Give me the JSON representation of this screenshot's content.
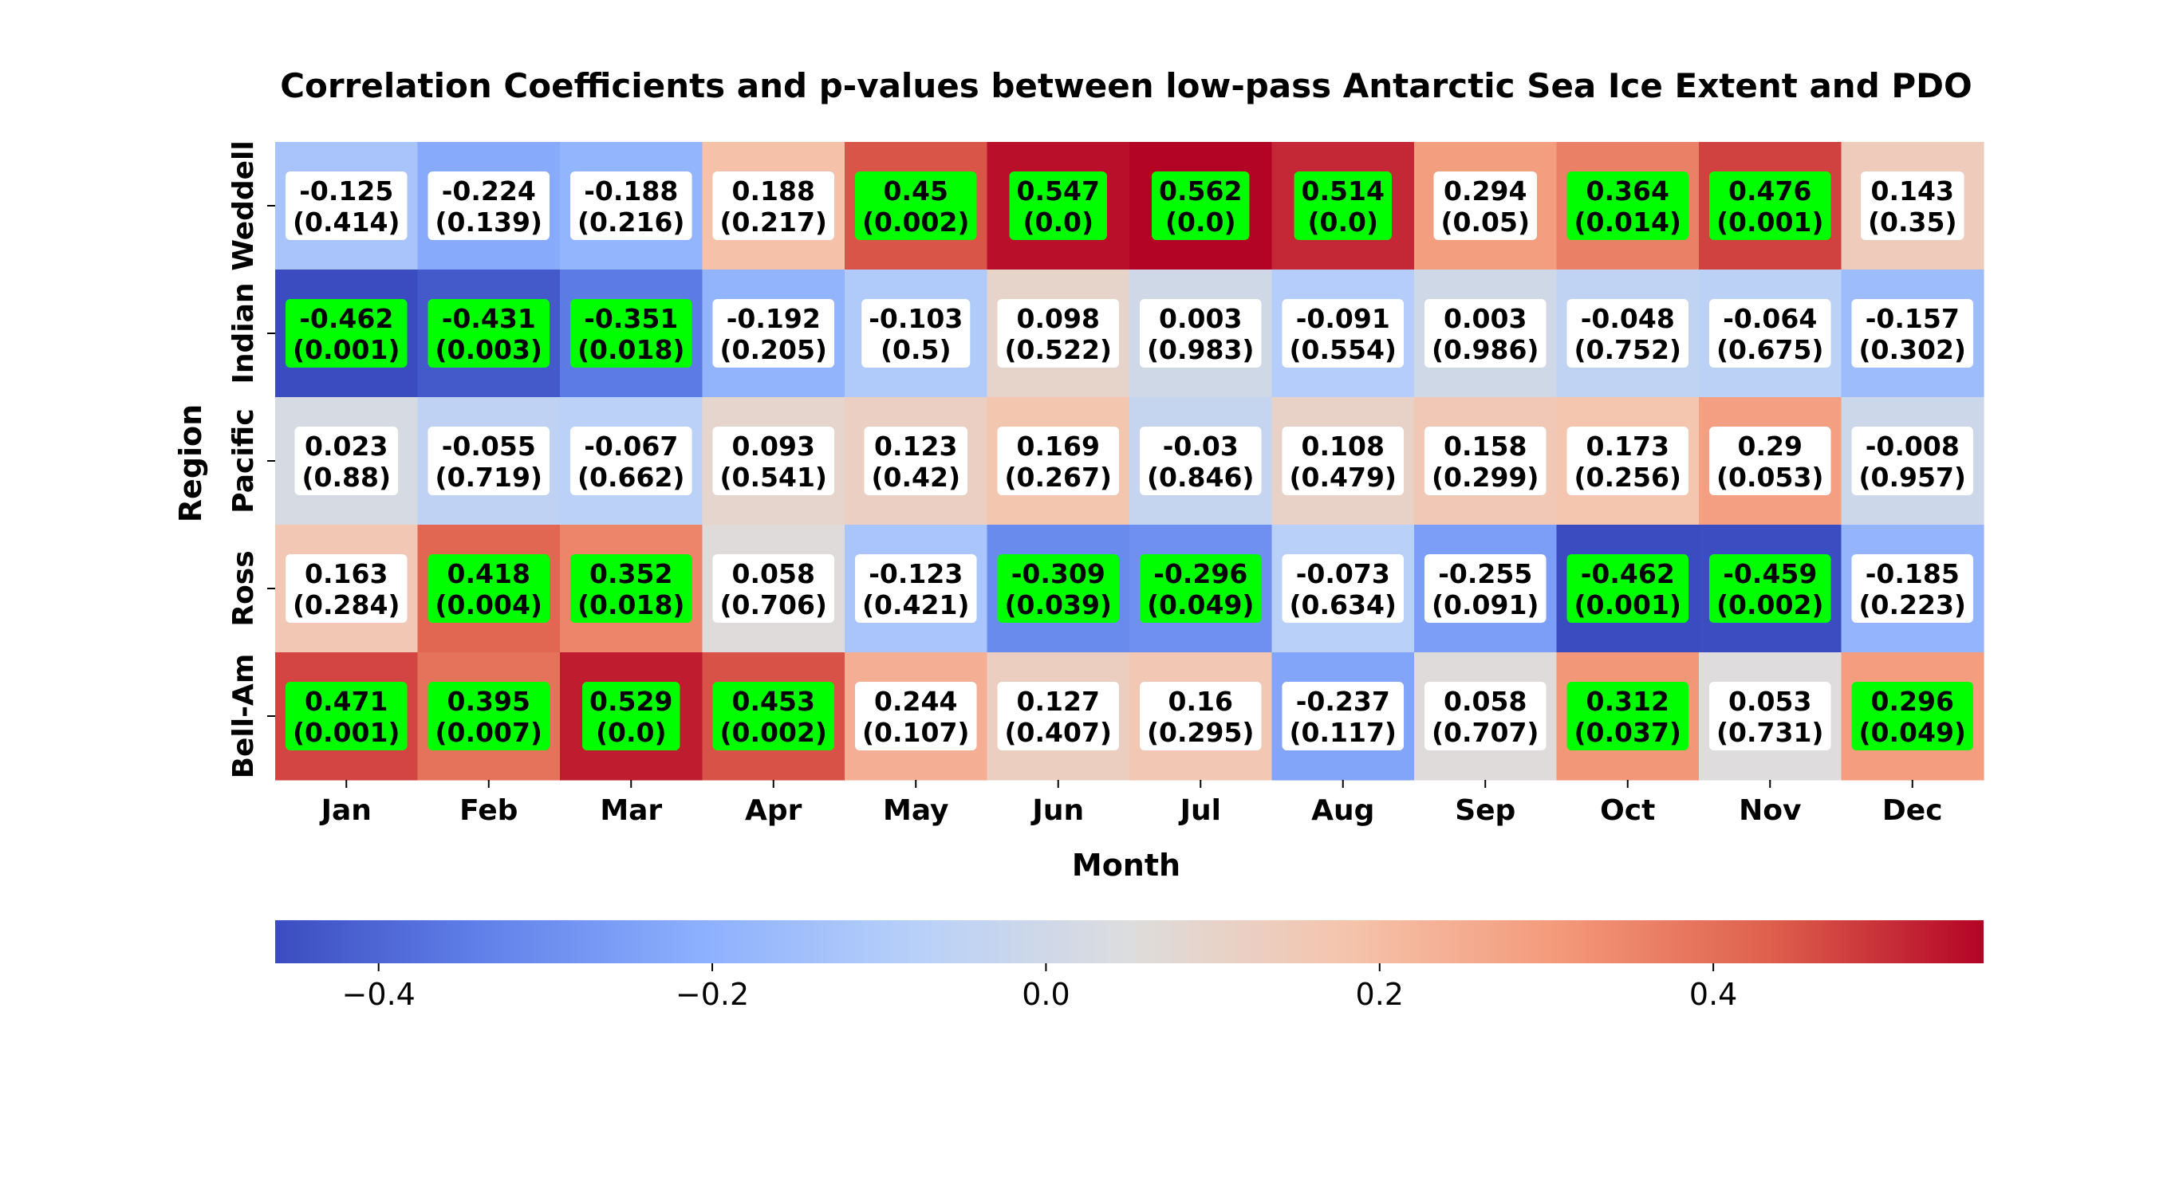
{
  "chart_data": {
    "type": "heatmap",
    "title": "Correlation Coefficients and p-values between low-pass Antarctic Sea Ice Extent and PDO",
    "xlabel": "Month",
    "ylabel": "Region",
    "x_categories": [
      "Jan",
      "Feb",
      "Mar",
      "Apr",
      "May",
      "Jun",
      "Jul",
      "Aug",
      "Sep",
      "Oct",
      "Nov",
      "Dec"
    ],
    "y_categories": [
      "Weddell",
      "Indian",
      "Pacific",
      "Ross",
      "Bell-Am"
    ],
    "values": [
      [
        -0.125,
        -0.224,
        -0.188,
        0.188,
        0.45,
        0.547,
        0.562,
        0.514,
        0.294,
        0.364,
        0.476,
        0.143
      ],
      [
        -0.462,
        -0.431,
        -0.351,
        -0.192,
        -0.103,
        0.098,
        0.003,
        -0.091,
        0.003,
        -0.048,
        -0.064,
        -0.157
      ],
      [
        0.023,
        -0.055,
        -0.067,
        0.093,
        0.123,
        0.169,
        -0.03,
        0.108,
        0.158,
        0.173,
        0.29,
        -0.008
      ],
      [
        0.163,
        0.418,
        0.352,
        0.058,
        -0.123,
        -0.309,
        -0.296,
        -0.073,
        -0.255,
        -0.462,
        -0.459,
        -0.185
      ],
      [
        0.471,
        0.395,
        0.529,
        0.453,
        0.244,
        0.127,
        0.16,
        -0.237,
        0.058,
        0.312,
        0.053,
        0.296
      ]
    ],
    "labels": [
      [
        "-0.125",
        "-0.224",
        "-0.188",
        "0.188",
        "0.45",
        "0.547",
        "0.562",
        "0.514",
        "0.294",
        "0.364",
        "0.476",
        "0.143"
      ],
      [
        "-0.462",
        "-0.431",
        "-0.351",
        "-0.192",
        "-0.103",
        "0.098",
        "0.003",
        "-0.091",
        "0.003",
        "-0.048",
        "-0.064",
        "-0.157"
      ],
      [
        "0.023",
        "-0.055",
        "-0.067",
        "0.093",
        "0.123",
        "0.169",
        "-0.03",
        "0.108",
        "0.158",
        "0.173",
        "0.29",
        "-0.008"
      ],
      [
        "0.163",
        "0.418",
        "0.352",
        "0.058",
        "-0.123",
        "-0.309",
        "-0.296",
        "-0.073",
        "-0.255",
        "-0.462",
        "-0.459",
        "-0.185"
      ],
      [
        "0.471",
        "0.395",
        "0.529",
        "0.453",
        "0.244",
        "0.127",
        "0.16",
        "-0.237",
        "0.058",
        "0.312",
        "0.053",
        "0.296"
      ]
    ],
    "p_values": [
      [
        "(0.414)",
        "(0.139)",
        "(0.216)",
        "(0.217)",
        "(0.002)",
        "(0.0)",
        "(0.0)",
        "(0.0)",
        "(0.05)",
        "(0.014)",
        "(0.001)",
        "(0.35)"
      ],
      [
        "(0.001)",
        "(0.003)",
        "(0.018)",
        "(0.205)",
        "(0.5)",
        "(0.522)",
        "(0.983)",
        "(0.554)",
        "(0.986)",
        "(0.752)",
        "(0.675)",
        "(0.302)"
      ],
      [
        "(0.88)",
        "(0.719)",
        "(0.662)",
        "(0.541)",
        "(0.42)",
        "(0.267)",
        "(0.846)",
        "(0.479)",
        "(0.299)",
        "(0.256)",
        "(0.053)",
        "(0.957)"
      ],
      [
        "(0.284)",
        "(0.004)",
        "(0.018)",
        "(0.706)",
        "(0.421)",
        "(0.039)",
        "(0.049)",
        "(0.634)",
        "(0.091)",
        "(0.001)",
        "(0.002)",
        "(0.223)"
      ],
      [
        "(0.001)",
        "(0.007)",
        "(0.0)",
        "(0.002)",
        "(0.107)",
        "(0.407)",
        "(0.295)",
        "(0.117)",
        "(0.707)",
        "(0.037)",
        "(0.731)",
        "(0.049)"
      ]
    ],
    "significant": [
      [
        false,
        false,
        false,
        false,
        true,
        true,
        true,
        true,
        false,
        true,
        true,
        false
      ],
      [
        true,
        true,
        true,
        false,
        false,
        false,
        false,
        false,
        false,
        false,
        false,
        false
      ],
      [
        false,
        false,
        false,
        false,
        false,
        false,
        false,
        false,
        false,
        false,
        false,
        false
      ],
      [
        false,
        true,
        true,
        false,
        false,
        true,
        true,
        false,
        false,
        true,
        true,
        false
      ],
      [
        true,
        true,
        true,
        true,
        false,
        false,
        false,
        false,
        false,
        true,
        false,
        true
      ]
    ],
    "colormap": "coolwarm",
    "vmin": -0.462,
    "vmax": 0.562,
    "colorbar": {
      "orientation": "horizontal",
      "position": "bottom",
      "ticks": [
        -0.4,
        -0.2,
        0.0,
        0.2,
        0.4
      ],
      "tick_labels": [
        "−0.4",
        "−0.2",
        "0.0",
        "0.2",
        "0.4"
      ]
    },
    "colors": {
      "significant_box": "#00ff00",
      "normal_box": "#ffffff"
    }
  }
}
